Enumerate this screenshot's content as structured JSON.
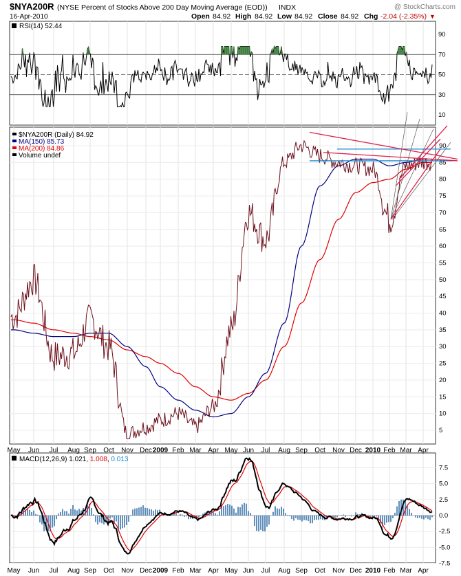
{
  "header": {
    "symbol": "$NYA200R",
    "description": "(NYSE Percent of Stocks Above 200 Day Moving Average (EOD))",
    "exchange": "INDX",
    "watermark": "@ StockCharts.com",
    "date": "16-Apr-2010",
    "open_label": "Open",
    "open": "84.92",
    "high_label": "High",
    "high": "84.92",
    "low_label": "Low",
    "low": "84.92",
    "close_label": "Close",
    "close": "84.92",
    "chg_label": "Chg",
    "chg": "-2.04 (-2.35%)",
    "chg_arrow": "▼"
  },
  "colors": {
    "price": "#000000",
    "ma150": "#000080",
    "ma200": "#e00000",
    "trend_blue": "#1a8ad4",
    "trend_red": "#e0204a",
    "macd_signal": "#e00000",
    "macd_hist": "#2060a0"
  },
  "x_axis": {
    "labels": [
      "May",
      "Jun",
      "Jul",
      "Aug",
      "Sep",
      "Oct",
      "Nov",
      "Dec",
      "2009",
      "Feb",
      "Mar",
      "Apr",
      "May",
      "Jun",
      "Jul",
      "Aug",
      "Sep",
      "Oct",
      "Nov",
      "Dec",
      "2010",
      "Feb",
      "Mar",
      "Apr"
    ],
    "bold": [
      "2009",
      "2010"
    ]
  },
  "rsi": {
    "label": "RSI(14) 52.44",
    "ticks": [
      "90",
      "70",
      "50",
      "30",
      "10"
    ]
  },
  "main": {
    "legend": [
      {
        "text": "$NYA200R (Daily) 84.92",
        "color": "#000000"
      },
      {
        "text": "MA(150) 85.73",
        "color": "#000080"
      },
      {
        "text": "MA(200) 84.86",
        "color": "#e00000"
      },
      {
        "text": "Volume undef",
        "color": "#000000"
      }
    ],
    "ticks": [
      "90",
      "85",
      "80",
      "75",
      "70",
      "65",
      "60",
      "55",
      "50",
      "45",
      "40",
      "35",
      "30",
      "25",
      "20",
      "15",
      "10",
      "5"
    ]
  },
  "macd": {
    "label_parts": [
      {
        "text": "MACD(12,26,9) 1.021, ",
        "color": "#000000"
      },
      {
        "text": "1.008",
        "color": "#e00000"
      },
      {
        "text": ", ",
        "color": "#000000"
      },
      {
        "text": "0.013",
        "color": "#1a8ad4"
      }
    ],
    "ticks": [
      "7.5",
      "5.0",
      "2.5",
      "0.0",
      "-2.5",
      "-5.0",
      "-7.5"
    ]
  },
  "chart_data": {
    "type": "line",
    "x_anchors": [
      "May",
      "Jun",
      "Jul",
      "Aug",
      "Sep",
      "Oct",
      "Nov",
      "Dec",
      "2009",
      "Feb",
      "Mar",
      "Apr",
      "May",
      "Jun",
      "Jul",
      "Aug",
      "Sep",
      "Oct",
      "Nov",
      "Dec",
      "2010",
      "Feb",
      "Mar",
      "Apr"
    ],
    "series": [
      {
        "name": "$NYA200R (Daily)",
        "values": [
          39,
          50,
          27,
          28,
          38,
          30,
          4,
          6,
          8,
          10,
          6,
          12,
          35,
          70,
          62,
          85,
          90,
          87,
          85,
          84,
          83,
          68,
          84,
          85
        ]
      },
      {
        "name": "MA(150)",
        "values": [
          35,
          34,
          33,
          33,
          34,
          34,
          30,
          24,
          18,
          14,
          11,
          9,
          10,
          15,
          22,
          37,
          60,
          78,
          84,
          86,
          86,
          84,
          85,
          86
        ]
      },
      {
        "name": "MA(200)",
        "values": [
          38,
          37,
          35,
          34,
          33,
          32,
          29,
          27,
          25,
          22,
          18,
          15,
          14,
          16,
          20,
          30,
          43,
          56,
          68,
          76,
          79,
          80,
          83,
          85
        ]
      }
    ],
    "ylim": [
      2,
      93
    ],
    "rsi_ylim": [
      10,
      90
    ],
    "macd_ylim": [
      -8,
      9
    ]
  }
}
